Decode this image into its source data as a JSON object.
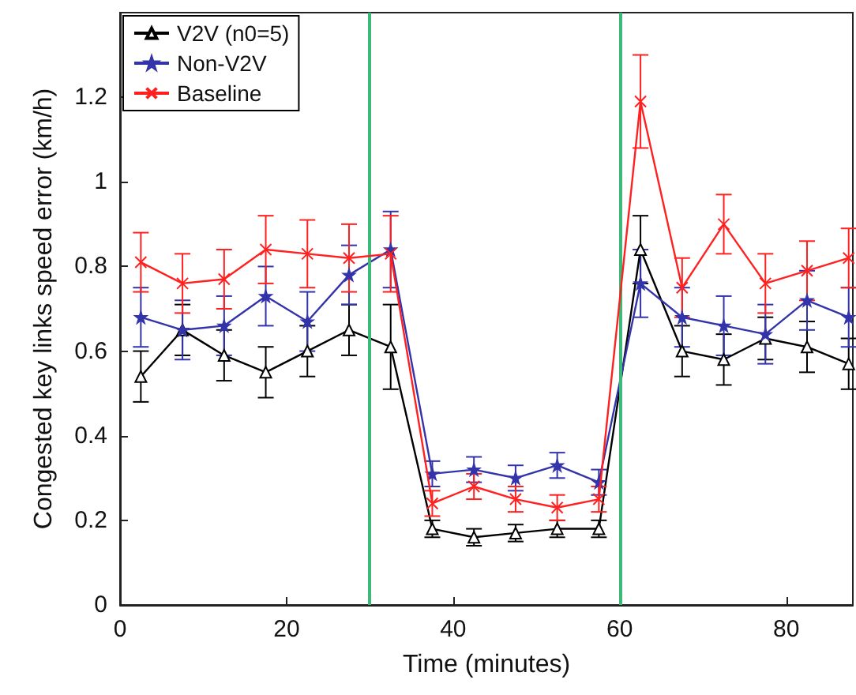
{
  "chart_data": {
    "type": "line",
    "xlabel": "Time (minutes)",
    "ylabel": "Congested key links speed error (km/h)",
    "x": [
      2.5,
      7.5,
      12.5,
      17.5,
      22.5,
      27.5,
      32.5,
      37.5,
      42.5,
      47.5,
      52.5,
      57.5,
      62.5,
      67.5,
      72.5,
      77.5,
      82.5,
      87.5
    ],
    "series": [
      {
        "name": "V2V (n0=5)",
        "color": "#000000",
        "marker": "triangle",
        "values": [
          0.54,
          0.65,
          0.59,
          0.55,
          0.6,
          0.65,
          0.61,
          0.18,
          0.16,
          0.17,
          0.18,
          0.18,
          0.84,
          0.6,
          0.58,
          0.63,
          0.61,
          0.57
        ],
        "errors": [
          0.06,
          0.06,
          0.06,
          0.06,
          0.06,
          0.06,
          0.1,
          0.02,
          0.02,
          0.02,
          0.02,
          0.02,
          0.08,
          0.06,
          0.06,
          0.05,
          0.06,
          0.06
        ]
      },
      {
        "name": "Non-V2V",
        "color": "#3333aa",
        "marker": "star",
        "values": [
          0.68,
          0.65,
          0.66,
          0.73,
          0.67,
          0.78,
          0.84,
          0.31,
          0.32,
          0.3,
          0.33,
          0.29,
          0.76,
          0.68,
          0.66,
          0.64,
          0.72,
          0.68
        ],
        "errors": [
          0.07,
          0.07,
          0.07,
          0.07,
          0.07,
          0.07,
          0.09,
          0.03,
          0.03,
          0.03,
          0.03,
          0.03,
          0.08,
          0.07,
          0.07,
          0.07,
          0.07,
          0.07
        ]
      },
      {
        "name": "Baseline",
        "color": "#ff2020",
        "marker": "cross",
        "values": [
          0.81,
          0.76,
          0.77,
          0.84,
          0.83,
          0.82,
          0.83,
          0.24,
          0.28,
          0.25,
          0.23,
          0.25,
          1.19,
          0.75,
          0.9,
          0.76,
          0.79,
          0.82
        ],
        "errors": [
          0.07,
          0.07,
          0.07,
          0.08,
          0.08,
          0.08,
          0.09,
          0.03,
          0.03,
          0.03,
          0.03,
          0.03,
          0.11,
          0.07,
          0.07,
          0.07,
          0.07,
          0.07
        ]
      }
    ],
    "ref_lines": [
      {
        "axis": "x",
        "value": 30,
        "color": "#3cb878"
      },
      {
        "axis": "x",
        "value": 60,
        "color": "#3cb878"
      }
    ],
    "xlim": [
      0,
      88
    ],
    "xticks": [
      0,
      20,
      40,
      60,
      80
    ],
    "ylim": [
      0,
      1.4
    ],
    "yticks": [
      0,
      0.2,
      0.4,
      0.6,
      0.8,
      1,
      1.2
    ],
    "grid": false,
    "legend": "top left",
    "line_style": "solid"
  }
}
